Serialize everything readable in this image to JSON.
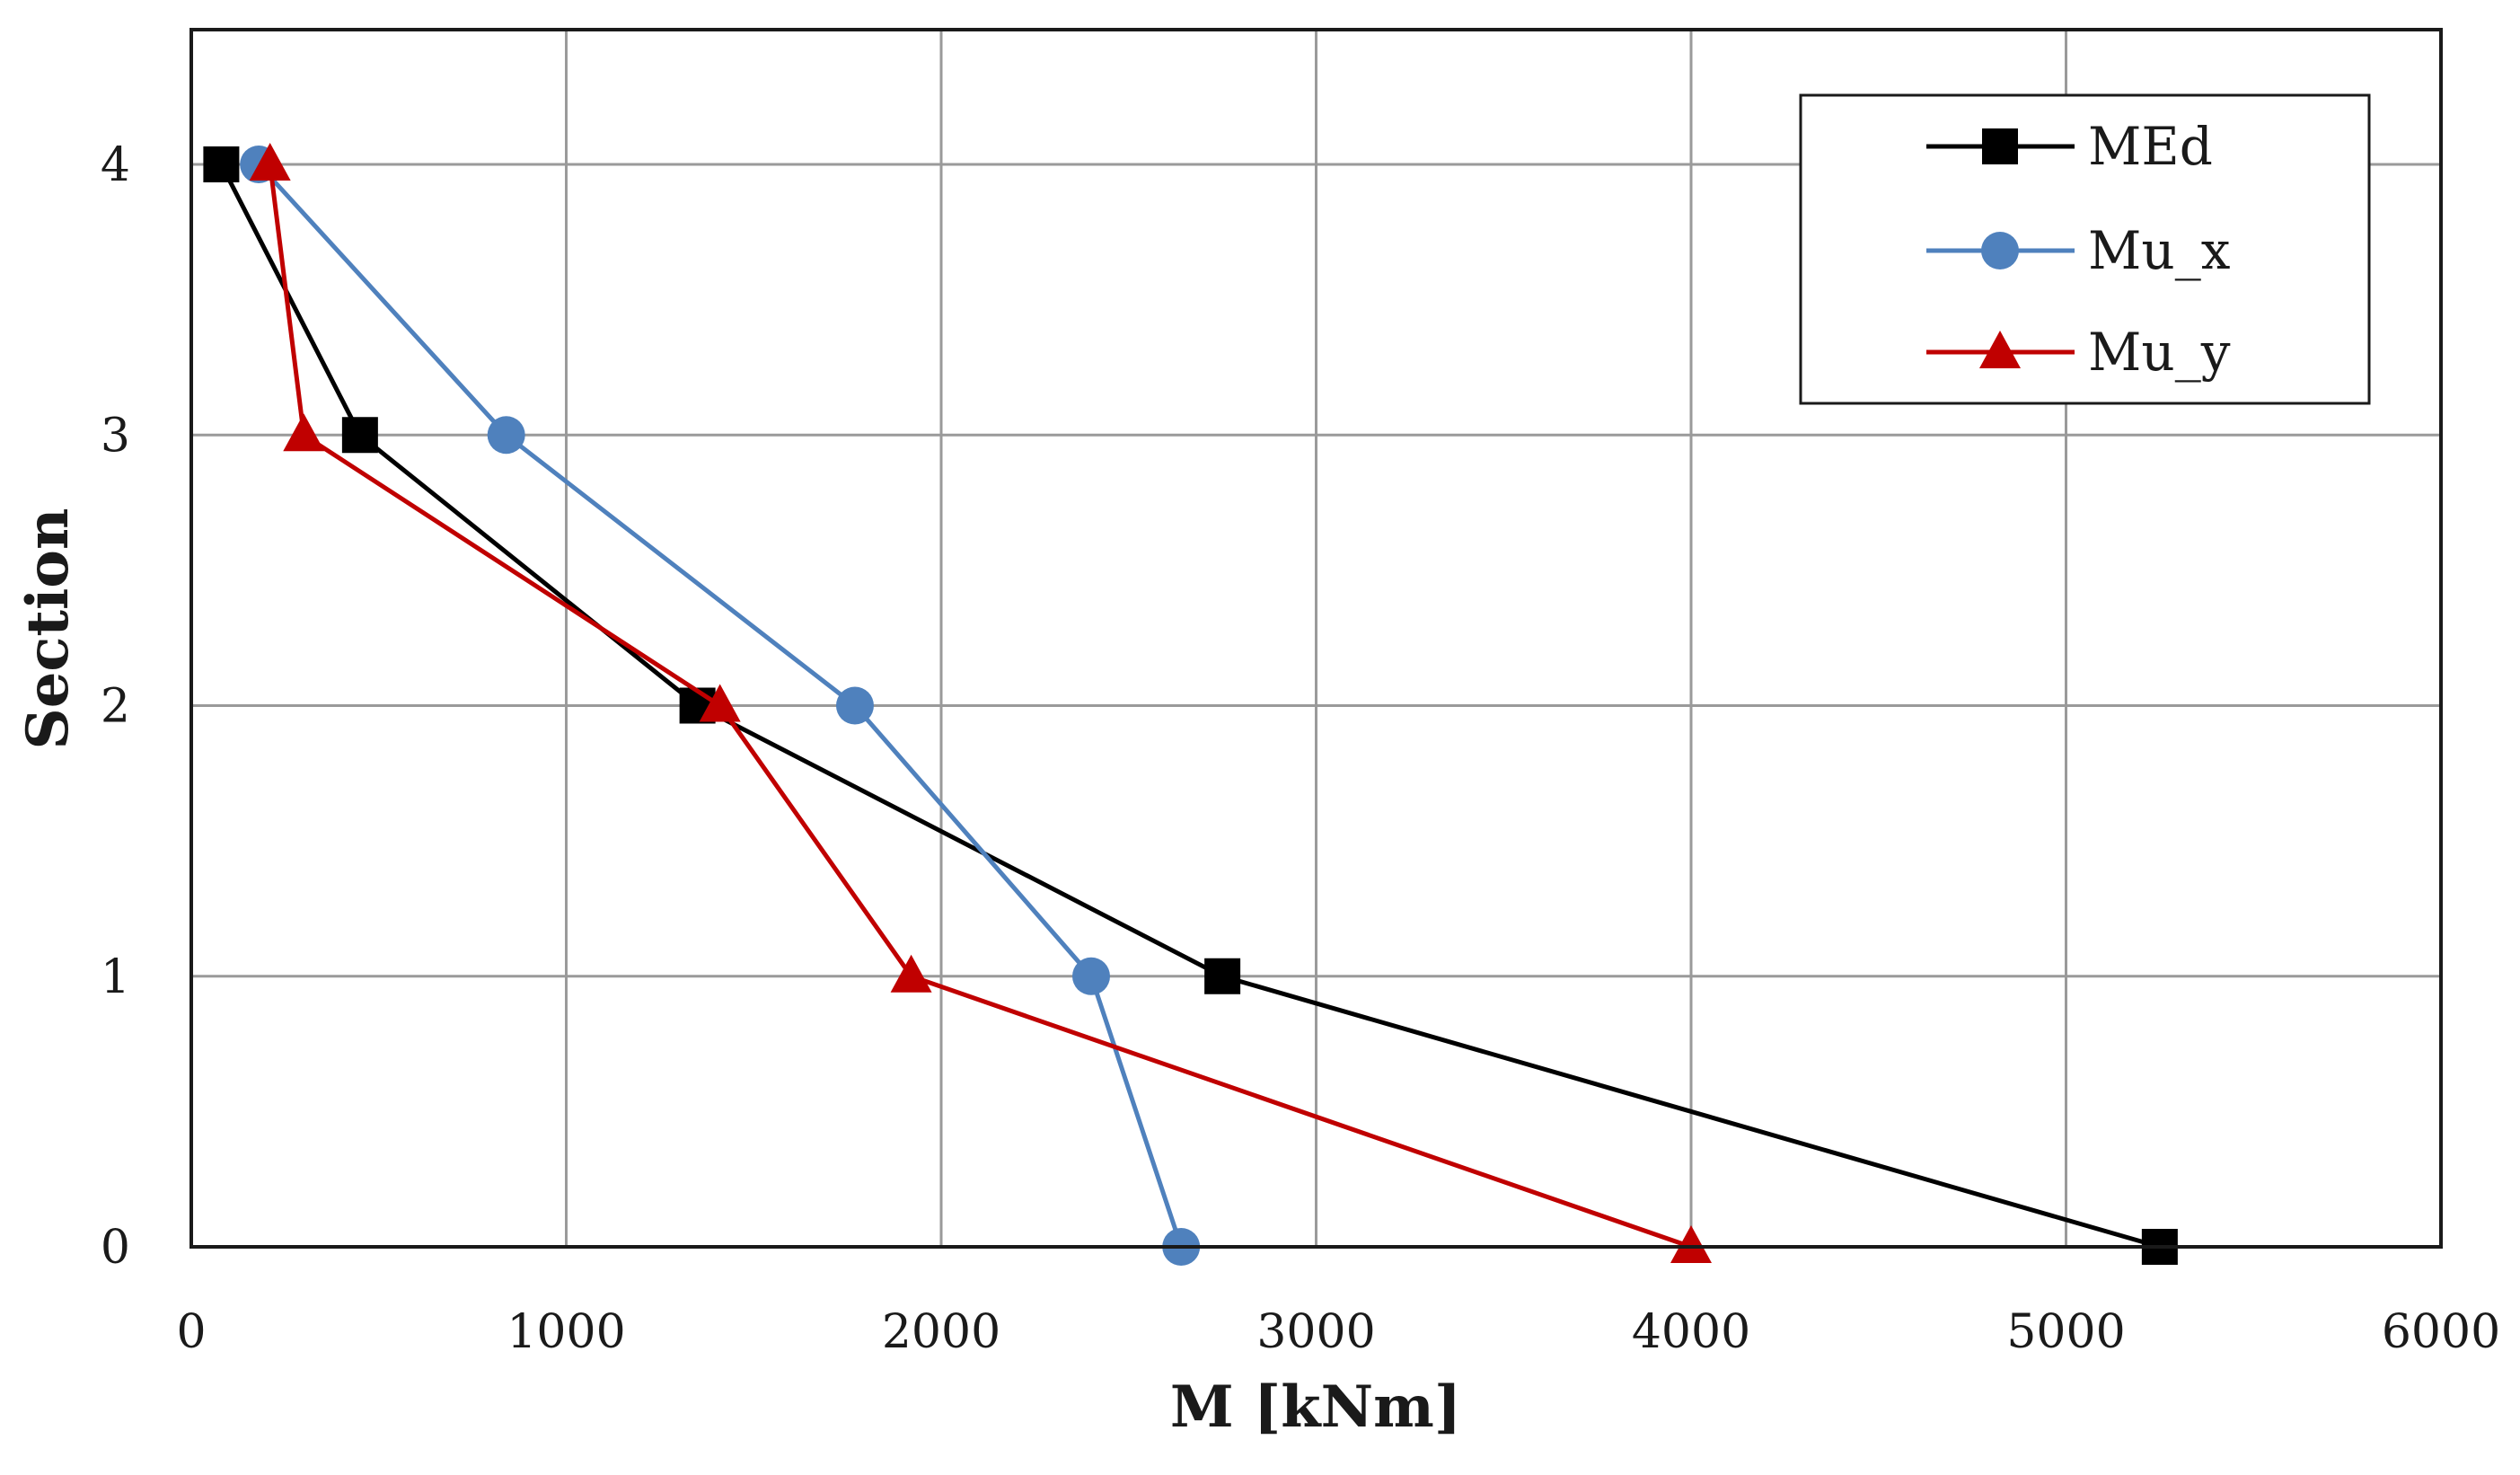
{
  "chart_data": {
    "type": "line",
    "title": "",
    "xlabel": "M [kNm]",
    "ylabel": "Section",
    "xlim": [
      0,
      6000
    ],
    "ylim": [
      0,
      4.5
    ],
    "xticks": [
      0,
      1000,
      2000,
      3000,
      4000,
      5000,
      6000
    ],
    "yticks": [
      0,
      1,
      2,
      3,
      4
    ],
    "grid": true,
    "legend_position": "top-right",
    "series": [
      {
        "name": "MEd",
        "color": "#000000",
        "marker": "square",
        "points": [
          {
            "x": 5250,
            "y": 0
          },
          {
            "x": 2750,
            "y": 1
          },
          {
            "x": 1350,
            "y": 2
          },
          {
            "x": 450,
            "y": 3
          },
          {
            "x": 80,
            "y": 4
          }
        ]
      },
      {
        "name": "Mu_x",
        "color": "#4f81bd",
        "marker": "circle",
        "points": [
          {
            "x": 2640,
            "y": 0
          },
          {
            "x": 2400,
            "y": 1
          },
          {
            "x": 1770,
            "y": 2
          },
          {
            "x": 840,
            "y": 3
          },
          {
            "x": 180,
            "y": 4
          }
        ]
      },
      {
        "name": "Mu_y",
        "color": "#c00000",
        "marker": "triangle",
        "points": [
          {
            "x": 4000,
            "y": 0
          },
          {
            "x": 1920,
            "y": 1
          },
          {
            "x": 1410,
            "y": 2
          },
          {
            "x": 300,
            "y": 3
          },
          {
            "x": 210,
            "y": 4
          }
        ]
      }
    ]
  }
}
